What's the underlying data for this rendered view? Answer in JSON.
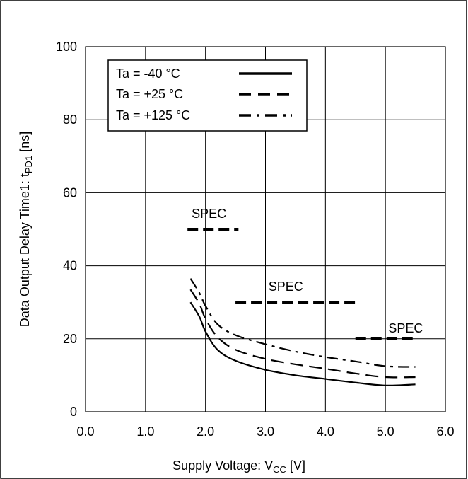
{
  "chart_data": {
    "type": "line",
    "title": "",
    "xlabel": {
      "main": "Supply Voltage: V",
      "sub": "CC",
      "unit": " [V]"
    },
    "ylabel": {
      "main": "Data Output Delay Time1: t",
      "sub": "PD1",
      "unit": " [ns]"
    },
    "xlim": [
      0,
      6
    ],
    "ylim": [
      0,
      100
    ],
    "x_ticks": [
      "0.0",
      "1.0",
      "2.0",
      "3.0",
      "4.0",
      "5.0",
      "6.0"
    ],
    "y_ticks": [
      "0",
      "20",
      "40",
      "60",
      "80",
      "100"
    ],
    "grid": true,
    "legend_position": "top-left",
    "series": [
      {
        "name": "Ta = -40 °C",
        "line_style": "solid",
        "x": [
          1.75,
          1.9,
          2.0,
          2.2,
          2.5,
          3.0,
          3.5,
          4.0,
          4.5,
          5.0,
          5.5
        ],
        "y": [
          30.0,
          26.0,
          22.0,
          17.0,
          14.0,
          11.5,
          10.0,
          9.0,
          8.0,
          7.2,
          7.5
        ]
      },
      {
        "name": "Ta = +25 °C",
        "line_style": "dashed",
        "x": [
          1.75,
          1.9,
          2.0,
          2.2,
          2.5,
          3.0,
          3.5,
          4.0,
          4.5,
          5.0,
          5.5
        ],
        "y": [
          33.5,
          29.5,
          25.5,
          20.5,
          17.0,
          14.5,
          13.0,
          11.8,
          10.5,
          9.5,
          9.5
        ]
      },
      {
        "name": "Ta = +125 °C",
        "line_style": "dashdot",
        "x": [
          1.75,
          1.9,
          2.0,
          2.2,
          2.5,
          3.0,
          3.5,
          4.0,
          4.5,
          5.0,
          5.5
        ],
        "y": [
          36.5,
          32.5,
          29.0,
          24.0,
          21.0,
          18.5,
          16.5,
          15.0,
          13.8,
          12.5,
          12.3
        ]
      }
    ],
    "spec_lines": [
      {
        "label": "SPEC",
        "x_range": [
          1.7,
          2.55
        ],
        "y": 50
      },
      {
        "label": "SPEC",
        "x_range": [
          2.5,
          4.55
        ],
        "y": 30
      },
      {
        "label": "SPEC",
        "x_range": [
          4.5,
          5.5
        ],
        "y": 20
      }
    ]
  }
}
